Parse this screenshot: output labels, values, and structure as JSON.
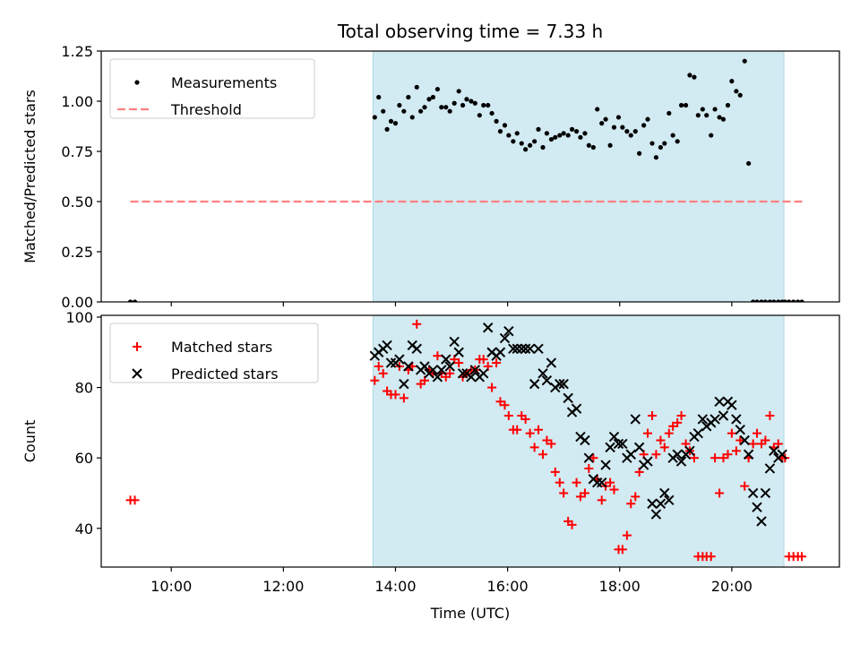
{
  "chart_data": [
    {
      "type": "scatter",
      "title": "Total observing time = 7.33 h",
      "xlabel": "",
      "ylabel": "Matched/Predicted stars",
      "ylim": [
        0,
        1.25
      ],
      "yticks": [
        "0.00",
        "0.25",
        "0.50",
        "0.75",
        "1.00",
        "1.25"
      ],
      "xlim_hours": [
        8.75,
        21.92
      ],
      "observing_window": [
        13.6,
        20.93
      ],
      "observing_window_color": "#add8e6",
      "legend_position": "upper-left",
      "legend": [
        "Measurements",
        "Threshold"
      ],
      "threshold": {
        "name": "Threshold",
        "value": 0.5,
        "x_range": [
          9.27,
          21.3
        ],
        "color": "#ff7f7f",
        "style": "dashed"
      },
      "series": [
        {
          "name": "Measurements",
          "color": "#000000",
          "marker": "dot",
          "x": [
            9.27,
            9.35,
            13.63,
            13.7,
            13.78,
            13.85,
            13.92,
            14.0,
            14.07,
            14.15,
            14.23,
            14.3,
            14.38,
            14.45,
            14.52,
            14.6,
            14.67,
            14.75,
            14.82,
            14.9,
            14.97,
            15.05,
            15.13,
            15.2,
            15.27,
            15.35,
            15.42,
            15.5,
            15.57,
            15.65,
            15.72,
            15.8,
            15.87,
            15.95,
            16.02,
            16.1,
            16.17,
            16.25,
            16.32,
            16.4,
            16.48,
            16.55,
            16.63,
            16.7,
            16.78,
            16.85,
            16.93,
            17.0,
            17.08,
            17.15,
            17.23,
            17.3,
            17.38,
            17.45,
            17.53,
            17.6,
            17.68,
            17.75,
            17.83,
            17.9,
            17.98,
            18.05,
            18.13,
            18.2,
            18.28,
            18.35,
            18.43,
            18.5,
            18.58,
            18.65,
            18.73,
            18.8,
            18.88,
            18.95,
            19.03,
            19.1,
            19.18,
            19.25,
            19.33,
            19.4,
            19.48,
            19.55,
            19.63,
            19.7,
            19.78,
            19.85,
            19.93,
            20.0,
            20.08,
            20.15,
            20.23,
            20.3,
            20.38,
            20.45,
            20.53,
            20.6,
            20.68,
            20.75,
            20.83,
            20.9,
            20.95,
            21.02,
            21.1,
            21.18,
            21.25
          ],
          "y": [
            0.0,
            0.0,
            0.92,
            1.02,
            0.95,
            0.86,
            0.9,
            0.89,
            0.98,
            0.95,
            1.02,
            0.92,
            1.07,
            0.95,
            0.97,
            1.01,
            1.02,
            1.06,
            0.97,
            0.97,
            0.95,
            0.99,
            1.05,
            0.98,
            1.01,
            1.0,
            0.99,
            0.93,
            0.98,
            0.98,
            0.94,
            0.9,
            0.85,
            0.88,
            0.83,
            0.8,
            0.84,
            0.79,
            0.76,
            0.78,
            0.8,
            0.86,
            0.77,
            0.84,
            0.81,
            0.82,
            0.83,
            0.84,
            0.83,
            0.86,
            0.85,
            0.82,
            0.84,
            0.78,
            0.77,
            0.96,
            0.89,
            0.91,
            0.78,
            0.87,
            0.92,
            0.87,
            0.85,
            0.83,
            0.85,
            0.74,
            0.88,
            0.91,
            0.79,
            0.72,
            0.77,
            0.79,
            0.94,
            0.83,
            0.8,
            0.98,
            0.98,
            1.13,
            1.12,
            0.93,
            0.96,
            0.93,
            0.83,
            0.96,
            0.92,
            0.91,
            0.98,
            1.1,
            1.05,
            1.03,
            1.2,
            0.69,
            0.0,
            0.0,
            0.0,
            0.0,
            0.0,
            0.0,
            0.0,
            0.0,
            0.0,
            0.0,
            0.0,
            0.0,
            0.0
          ]
        }
      ]
    },
    {
      "type": "scatter",
      "title": "",
      "xlabel": "Time (UTC)",
      "ylabel": "Count",
      "ylim": [
        29,
        100.5
      ],
      "yticks": [
        "40",
        "60",
        "80",
        "100"
      ],
      "xticks": [
        "10:00",
        "12:00",
        "14:00",
        "16:00",
        "18:00",
        "20:00"
      ],
      "xlim_hours": [
        8.75,
        21.92
      ],
      "observing_window": [
        13.6,
        20.93
      ],
      "legend_position": "upper-left",
      "legend": [
        "Matched stars",
        "Predicted stars"
      ],
      "series": [
        {
          "name": "Matched stars",
          "color": "#ff0000",
          "marker": "plus",
          "x": [
            9.27,
            9.35,
            13.63,
            13.7,
            13.78,
            13.85,
            13.92,
            14.0,
            14.07,
            14.15,
            14.23,
            14.3,
            14.38,
            14.45,
            14.52,
            14.6,
            14.67,
            14.75,
            14.82,
            14.9,
            14.97,
            15.05,
            15.13,
            15.2,
            15.27,
            15.35,
            15.42,
            15.5,
            15.57,
            15.65,
            15.72,
            15.8,
            15.87,
            15.95,
            16.02,
            16.1,
            16.17,
            16.25,
            16.32,
            16.4,
            16.48,
            16.55,
            16.63,
            16.7,
            16.78,
            16.85,
            16.93,
            17.0,
            17.08,
            17.15,
            17.23,
            17.3,
            17.38,
            17.45,
            17.53,
            17.6,
            17.68,
            17.75,
            17.83,
            17.9,
            17.98,
            18.05,
            18.13,
            18.2,
            18.28,
            18.35,
            18.43,
            18.5,
            18.58,
            18.65,
            18.73,
            18.8,
            18.88,
            18.95,
            19.03,
            19.1,
            19.18,
            19.25,
            19.33,
            19.4,
            19.48,
            19.55,
            19.63,
            19.7,
            19.78,
            19.85,
            19.93,
            20.0,
            20.08,
            20.15,
            20.23,
            20.3,
            20.38,
            20.45,
            20.53,
            20.6,
            20.68,
            20.75,
            20.83,
            20.9,
            20.95,
            21.02,
            21.1,
            21.18,
            21.25
          ],
          "y": [
            48,
            48,
            82,
            86,
            84,
            79,
            78,
            78,
            86,
            77,
            85,
            86,
            98,
            81,
            82,
            85,
            84,
            89,
            84,
            83,
            84,
            88,
            87,
            83,
            84,
            85,
            85,
            88,
            88,
            86,
            80,
            87,
            76,
            75,
            72,
            68,
            68,
            72,
            71,
            67,
            63,
            68,
            61,
            65,
            64,
            56,
            53,
            50,
            42,
            41,
            53,
            49,
            50,
            57,
            60,
            54,
            48,
            52,
            53,
            51,
            34,
            34,
            38,
            47,
            49,
            56,
            61,
            67,
            72,
            61,
            65,
            63,
            67,
            69,
            70,
            72,
            64,
            62,
            60,
            32,
            32,
            32,
            32,
            60,
            50,
            60,
            61,
            67,
            62,
            65,
            52,
            60,
            64,
            67,
            64,
            65,
            72,
            63,
            64,
            60,
            60,
            32,
            32,
            32,
            32
          ]
        },
        {
          "name": "Predicted stars",
          "color": "#000000",
          "marker": "x",
          "x": [
            13.63,
            13.7,
            13.78,
            13.85,
            13.92,
            14.0,
            14.07,
            14.15,
            14.23,
            14.3,
            14.38,
            14.45,
            14.52,
            14.6,
            14.67,
            14.75,
            14.82,
            14.9,
            14.97,
            15.05,
            15.13,
            15.2,
            15.27,
            15.35,
            15.42,
            15.5,
            15.57,
            15.65,
            15.72,
            15.8,
            15.87,
            15.95,
            16.02,
            16.1,
            16.17,
            16.25,
            16.32,
            16.4,
            16.48,
            16.55,
            16.63,
            16.7,
            16.78,
            16.85,
            16.93,
            17.0,
            17.08,
            17.15,
            17.23,
            17.3,
            17.38,
            17.45,
            17.53,
            17.6,
            17.68,
            17.75,
            17.83,
            17.9,
            17.98,
            18.05,
            18.13,
            18.2,
            18.28,
            18.35,
            18.43,
            18.5,
            18.58,
            18.65,
            18.73,
            18.8,
            18.88,
            18.95,
            19.03,
            19.1,
            19.18,
            19.25,
            19.33,
            19.4,
            19.48,
            19.55,
            19.63,
            19.7,
            19.78,
            19.85,
            19.93,
            20.0,
            20.08,
            20.15,
            20.23,
            20.3,
            20.38,
            20.45,
            20.53,
            20.6,
            20.68,
            20.75,
            20.83,
            20.9
          ],
          "y": [
            89,
            90,
            91,
            92,
            87,
            87,
            88,
            81,
            86,
            92,
            91,
            85,
            86,
            84,
            85,
            83,
            85,
            88,
            86,
            93,
            90,
            84,
            84,
            83,
            85,
            83,
            84,
            97,
            90,
            89,
            90,
            94,
            96,
            91,
            91,
            91,
            91,
            91,
            81,
            91,
            84,
            82,
            87,
            80,
            81,
            81,
            77,
            73,
            74,
            66,
            65,
            60,
            54,
            53,
            53,
            58,
            63,
            66,
            64,
            64,
            60,
            61,
            71,
            63,
            58,
            59,
            47,
            44,
            47,
            50,
            48,
            60,
            61,
            59,
            61,
            62,
            66,
            67,
            71,
            69,
            70,
            71,
            76,
            72,
            76,
            75,
            71,
            68,
            65,
            61,
            50,
            46,
            42,
            50,
            57,
            62,
            60,
            61
          ]
        }
      ]
    }
  ]
}
